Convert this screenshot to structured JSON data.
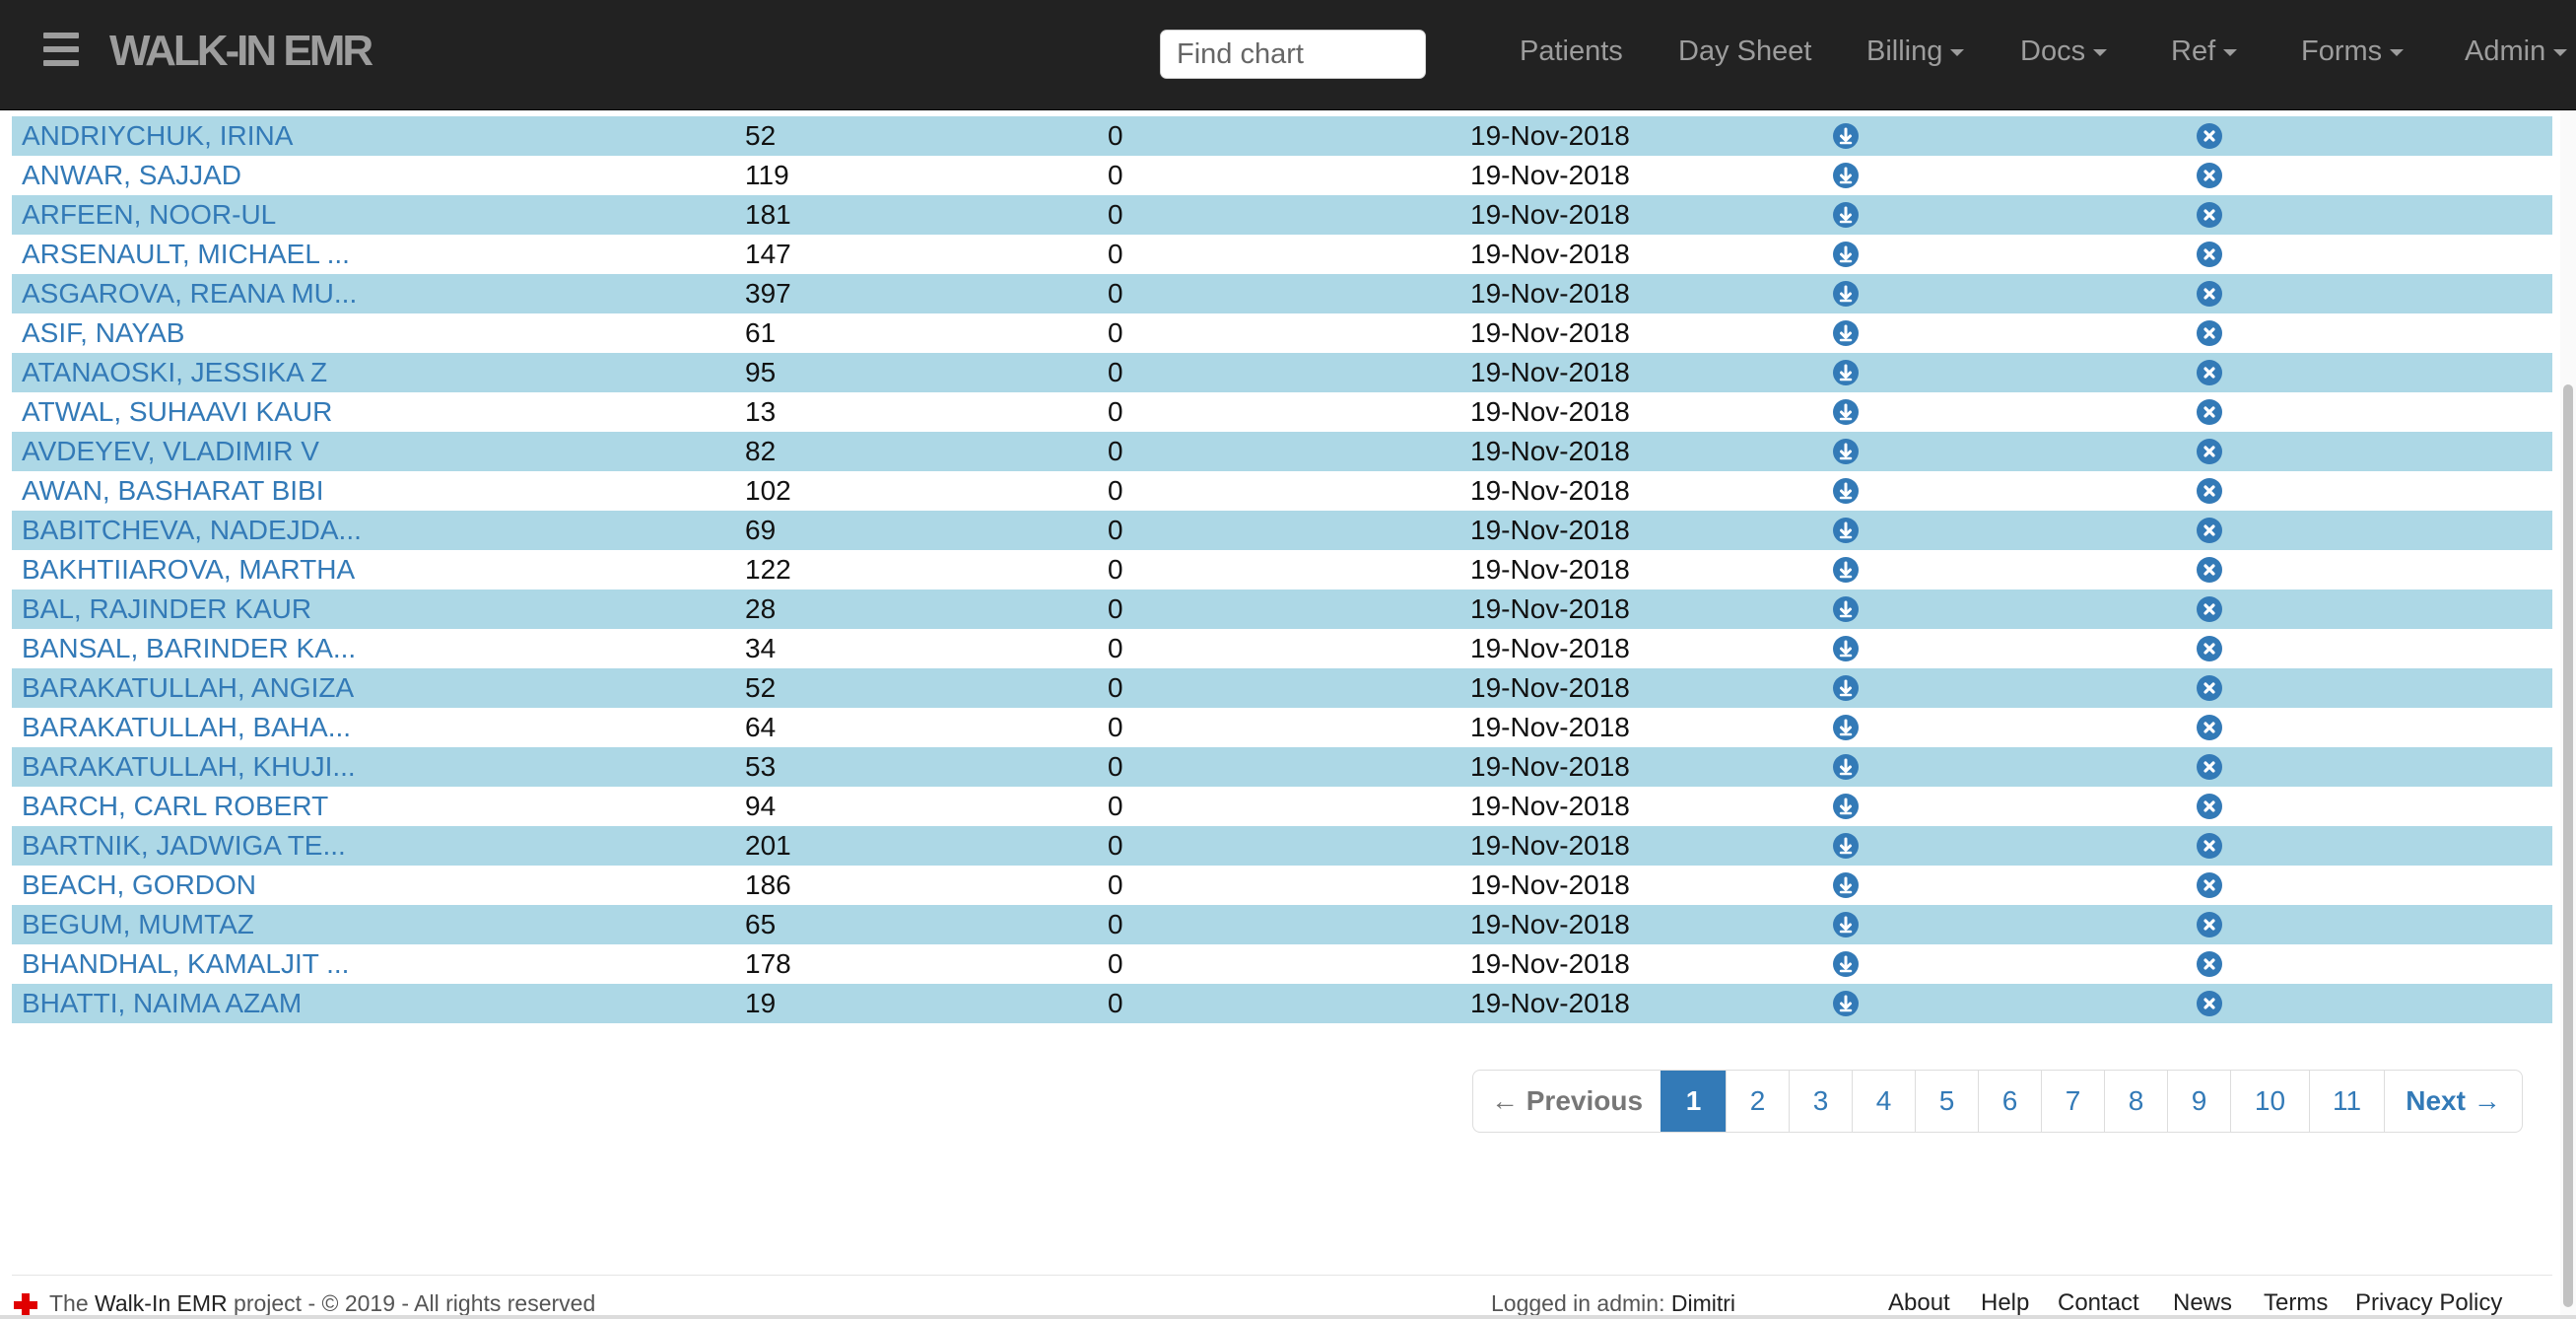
{
  "navbar": {
    "brand": "WALK-IN EMR",
    "search_placeholder": "Find chart",
    "items": {
      "patients": "Patients",
      "day_sheet": "Day Sheet",
      "billing": "Billing",
      "docs": "Docs",
      "ref": "Ref",
      "forms": "Forms",
      "admin": "Admin"
    }
  },
  "patients": [
    {
      "name": "ANDRIYCHUK, IRINA",
      "visits": "52",
      "balance": "0",
      "date": "19-Nov-2018"
    },
    {
      "name": "ANWAR, SAJJAD",
      "visits": "119",
      "balance": "0",
      "date": "19-Nov-2018"
    },
    {
      "name": "ARFEEN, NOOR-UL",
      "visits": "181",
      "balance": "0",
      "date": "19-Nov-2018"
    },
    {
      "name": "ARSENAULT, MICHAEL ...",
      "visits": "147",
      "balance": "0",
      "date": "19-Nov-2018"
    },
    {
      "name": "ASGAROVA, REANA MU...",
      "visits": "397",
      "balance": "0",
      "date": "19-Nov-2018"
    },
    {
      "name": "ASIF, NAYAB",
      "visits": "61",
      "balance": "0",
      "date": "19-Nov-2018"
    },
    {
      "name": "ATANAOSKI, JESSIKA Z",
      "visits": "95",
      "balance": "0",
      "date": "19-Nov-2018"
    },
    {
      "name": "ATWAL, SUHAAVI KAUR",
      "visits": "13",
      "balance": "0",
      "date": "19-Nov-2018"
    },
    {
      "name": "AVDEYEV, VLADIMIR V",
      "visits": "82",
      "balance": "0",
      "date": "19-Nov-2018"
    },
    {
      "name": "AWAN, BASHARAT BIBI",
      "visits": "102",
      "balance": "0",
      "date": "19-Nov-2018"
    },
    {
      "name": "BABITCHEVA, NADEJDA...",
      "visits": "69",
      "balance": "0",
      "date": "19-Nov-2018"
    },
    {
      "name": "BAKHTIIAROVA, MARTHA",
      "visits": "122",
      "balance": "0",
      "date": "19-Nov-2018"
    },
    {
      "name": "BAL, RAJINDER KAUR",
      "visits": "28",
      "balance": "0",
      "date": "19-Nov-2018"
    },
    {
      "name": "BANSAL, BARINDER KA...",
      "visits": "34",
      "balance": "0",
      "date": "19-Nov-2018"
    },
    {
      "name": "BARAKATULLAH, ANGIZA",
      "visits": "52",
      "balance": "0",
      "date": "19-Nov-2018"
    },
    {
      "name": "BARAKATULLAH, BAHA...",
      "visits": "64",
      "balance": "0",
      "date": "19-Nov-2018"
    },
    {
      "name": "BARAKATULLAH, KHUJI...",
      "visits": "53",
      "balance": "0",
      "date": "19-Nov-2018"
    },
    {
      "name": "BARCH, CARL ROBERT",
      "visits": "94",
      "balance": "0",
      "date": "19-Nov-2018"
    },
    {
      "name": "BARTNIK, JADWIGA TE...",
      "visits": "201",
      "balance": "0",
      "date": "19-Nov-2018"
    },
    {
      "name": "BEACH, GORDON",
      "visits": "186",
      "balance": "0",
      "date": "19-Nov-2018"
    },
    {
      "name": "BEGUM, MUMTAZ",
      "visits": "65",
      "balance": "0",
      "date": "19-Nov-2018"
    },
    {
      "name": "BHANDHAL, KAMALJIT ...",
      "visits": "178",
      "balance": "0",
      "date": "19-Nov-2018"
    },
    {
      "name": "BHATTI, NAIMA AZAM",
      "visits": "19",
      "balance": "0",
      "date": "19-Nov-2018"
    }
  ],
  "row_icons": {
    "download": "download-icon",
    "delete": "remove-icon"
  },
  "pagination": {
    "previous": "← Previous",
    "next": "Next →",
    "pages": [
      "1",
      "2",
      "3",
      "4",
      "5",
      "6",
      "7",
      "8",
      "9",
      "10",
      "11"
    ],
    "active_page": "1"
  },
  "footer": {
    "prefix": "The",
    "project_name": "Walk-In EMR",
    "suffix": "project - © 2019 - All rights reserved",
    "logged_in_label": "Logged in admin:",
    "user": "Dimitri",
    "links": {
      "about": "About",
      "help": "Help",
      "contact": "Contact",
      "news": "News",
      "terms": "Terms",
      "privacy": "Privacy Policy"
    }
  },
  "colors": {
    "navbar_bg": "#222222",
    "row_stripe": "#add8e6",
    "link": "#337ab7",
    "logo_cross": "#e00000"
  }
}
